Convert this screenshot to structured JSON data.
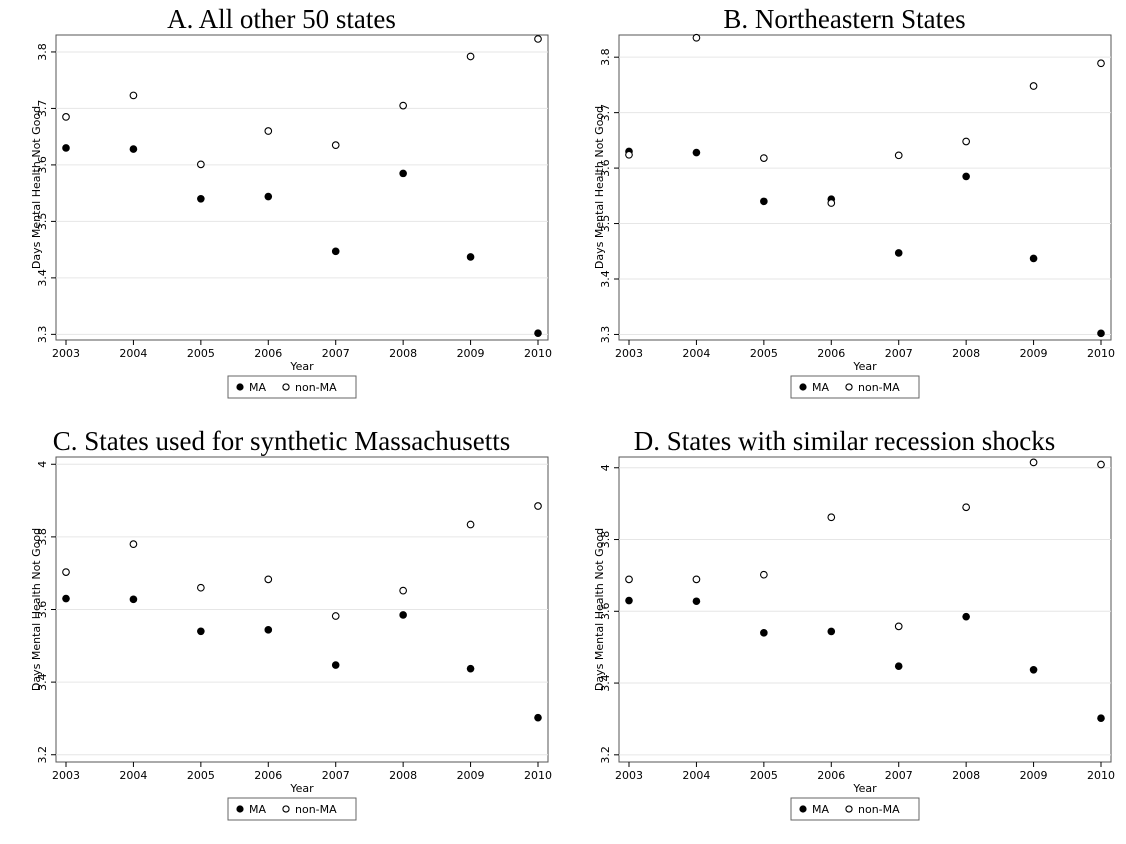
{
  "chart_data": [
    {
      "type": "scatter",
      "title": "A. All other 50 states",
      "xlabel": "Year",
      "ylabel": "Days Mental Health Not Good",
      "x": [
        2003,
        2004,
        2005,
        2006,
        2007,
        2008,
        2009,
        2010
      ],
      "yticks": [
        "3.3",
        "3.4",
        "3.5",
        "3.6",
        "3.7",
        "3.8"
      ],
      "ylim": [
        3.29,
        3.83
      ],
      "series": [
        {
          "name": "MA",
          "marker": "filled",
          "values": [
            3.63,
            3.628,
            3.54,
            3.544,
            3.447,
            3.585,
            3.437,
            3.302
          ]
        },
        {
          "name": "non-MA",
          "marker": "hollow",
          "values": [
            3.685,
            3.723,
            3.601,
            3.66,
            3.635,
            3.705,
            3.792,
            3.823
          ]
        }
      ],
      "legend": "bottom",
      "grid": true
    },
    {
      "type": "scatter",
      "title": "B. Northeastern States",
      "xlabel": "Year",
      "ylabel": "Days Mental Health Not Good",
      "x": [
        2003,
        2004,
        2005,
        2006,
        2007,
        2008,
        2009,
        2010
      ],
      "yticks": [
        "3.3",
        "3.4",
        "3.5",
        "3.6",
        "3.7",
        "3.8"
      ],
      "ylim": [
        3.29,
        3.84
      ],
      "series": [
        {
          "name": "MA",
          "marker": "filled",
          "values": [
            3.63,
            3.628,
            3.54,
            3.544,
            3.447,
            3.585,
            3.437,
            3.302
          ]
        },
        {
          "name": "non-MA",
          "marker": "hollow",
          "values": [
            3.624,
            3.835,
            3.618,
            3.537,
            3.623,
            3.648,
            3.748,
            3.789
          ]
        }
      ],
      "legend": "bottom",
      "grid": true
    },
    {
      "type": "scatter",
      "title": "C. States used for synthetic Massachusetts",
      "xlabel": "Year",
      "ylabel": "Days Mental Health Not Good",
      "x": [
        2003,
        2004,
        2005,
        2006,
        2007,
        2008,
        2009,
        2010
      ],
      "yticks": [
        "3.2",
        "3.4",
        "3.6",
        "3.8",
        "4"
      ],
      "ylim": [
        3.18,
        4.02
      ],
      "series": [
        {
          "name": "MA",
          "marker": "filled",
          "values": [
            3.63,
            3.628,
            3.54,
            3.544,
            3.447,
            3.585,
            3.437,
            3.302
          ]
        },
        {
          "name": "non-MA",
          "marker": "hollow",
          "values": [
            3.703,
            3.78,
            3.66,
            3.683,
            3.582,
            3.652,
            3.834,
            3.885
          ]
        }
      ],
      "legend": "bottom",
      "grid": true
    },
    {
      "type": "scatter",
      "title": "D. States with similar recession shocks",
      "xlabel": "Year",
      "ylabel": "Days Mental Health Not Good",
      "x": [
        2003,
        2004,
        2005,
        2006,
        2007,
        2008,
        2009,
        2010
      ],
      "yticks": [
        "3.2",
        "3.4",
        "3.6",
        "3.8",
        "4"
      ],
      "ylim": [
        3.18,
        4.03
      ],
      "series": [
        {
          "name": "MA",
          "marker": "filled",
          "values": [
            3.63,
            3.628,
            3.54,
            3.544,
            3.447,
            3.585,
            3.437,
            3.302
          ]
        },
        {
          "name": "non-MA",
          "marker": "hollow",
          "values": [
            3.689,
            3.689,
            3.702,
            3.862,
            3.558,
            3.89,
            4.015,
            4.009
          ]
        }
      ],
      "legend": "bottom",
      "grid": true
    }
  ]
}
